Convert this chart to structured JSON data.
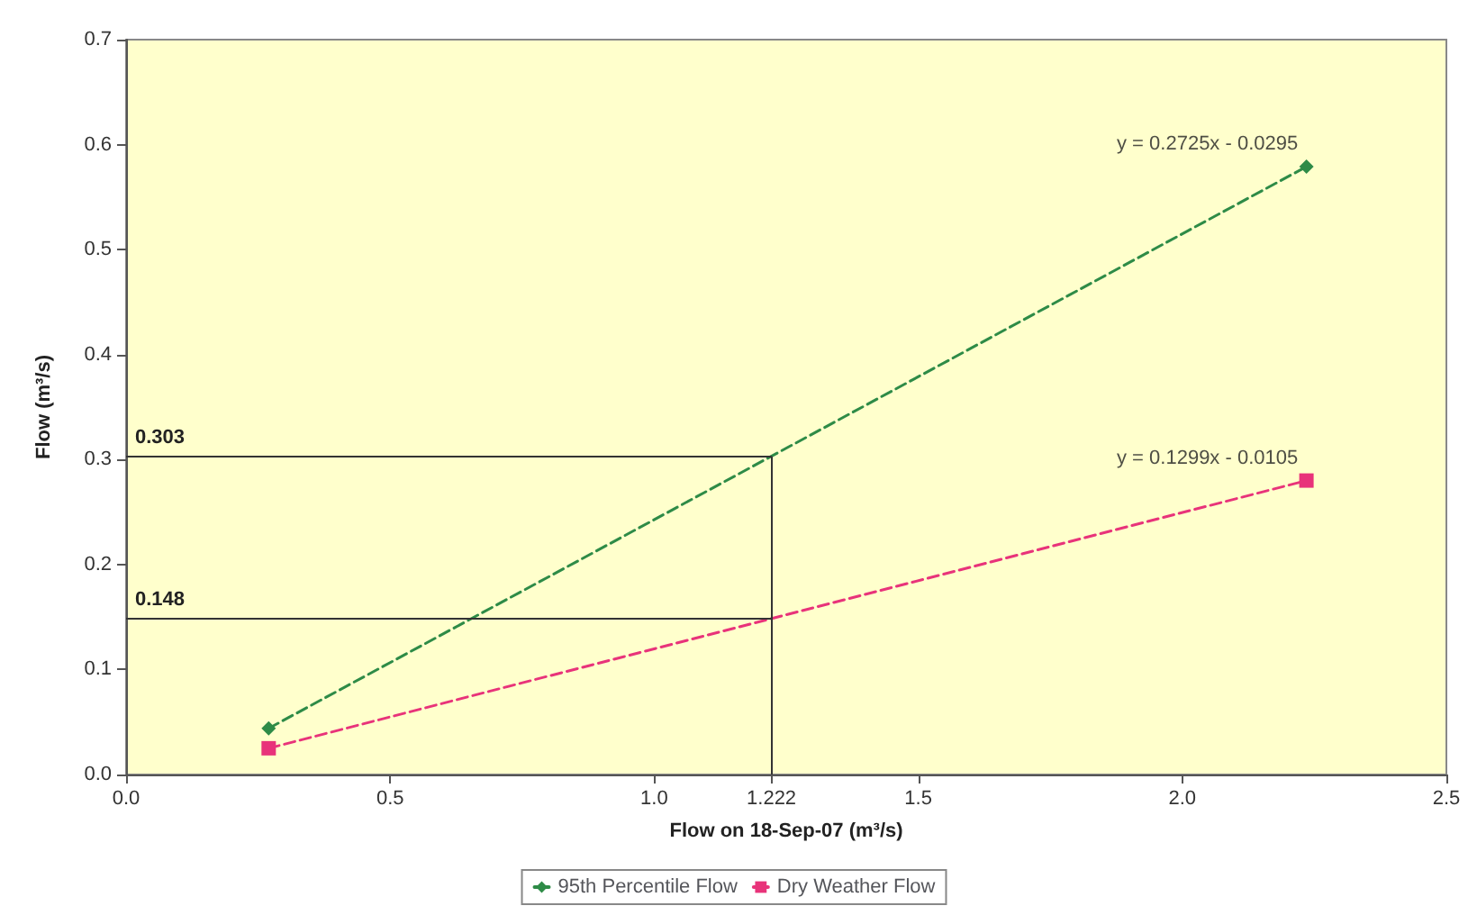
{
  "chart_data": {
    "type": "line",
    "xlabel": "Flow on 18-Sep-07 (m³/s)",
    "ylabel": "Flow (m³/s)",
    "x": [
      0.27,
      2.235
    ],
    "xlim": [
      0,
      2.5
    ],
    "ylim": [
      0,
      0.7
    ],
    "xticks": [
      {
        "value": 0,
        "label": "0.0"
      },
      {
        "value": 0.5,
        "label": "0.5"
      },
      {
        "value": 1,
        "label": "1.0"
      },
      {
        "value": 1.222,
        "label": "1.222"
      },
      {
        "value": 1.5,
        "label": "1.5"
      },
      {
        "value": 2,
        "label": "2.0"
      },
      {
        "value": 2.5,
        "label": "2.5"
      }
    ],
    "yticks": [
      {
        "value": 0,
        "label": "0.0"
      },
      {
        "value": 0.1,
        "label": "0.1"
      },
      {
        "value": 0.2,
        "label": "0.2"
      },
      {
        "value": 0.3,
        "label": "0.3"
      },
      {
        "value": 0.4,
        "label": "0.4"
      },
      {
        "value": 0.5,
        "label": "0.5"
      },
      {
        "value": 0.6,
        "label": "0.6"
      },
      {
        "value": 0.7,
        "label": "0.7"
      }
    ],
    "series": [
      {
        "name": "95th Percentile Flow",
        "color": "#2e8b47",
        "values": [
          0.044,
          0.579
        ],
        "marker": "diamond"
      },
      {
        "name": "Dry Weather Flow",
        "color": "#e8337a",
        "values": [
          0.025,
          0.28
        ],
        "marker": "square"
      }
    ],
    "line_style": "dashed",
    "grid": false,
    "legend": "bottom",
    "ref_lines": [
      {
        "axis": "y",
        "value": 0.303,
        "label": "0.303",
        "color": "#333333"
      },
      {
        "axis": "y",
        "value": 0.148,
        "label": "0.148",
        "color": "#333333"
      },
      {
        "axis": "x",
        "value": 1.222,
        "label": null,
        "color": "#333333"
      }
    ],
    "annotations": [
      {
        "text": "y = 0.2725x - 0.0295",
        "x": 2.235,
        "y": 0.579
      },
      {
        "text": "y = 0.1299x - 0.0105",
        "x": 2.235,
        "y": 0.28
      }
    ]
  }
}
